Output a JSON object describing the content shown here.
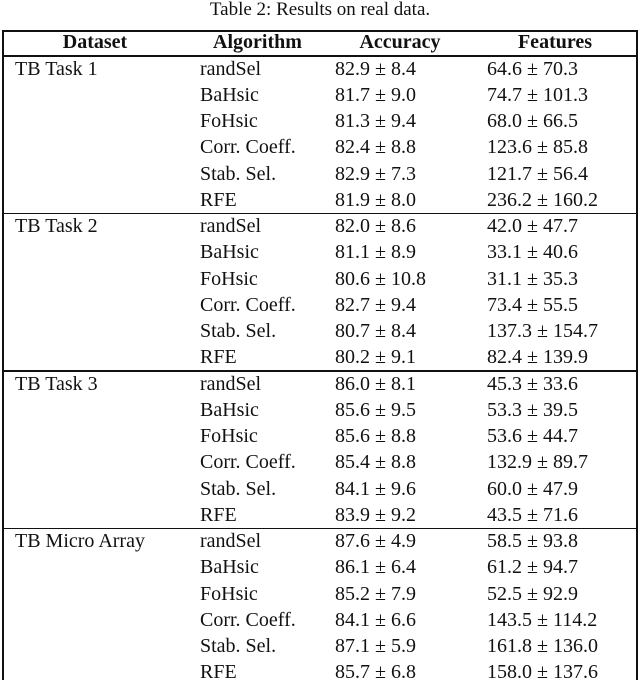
{
  "caption": "Table 2: Results on real data.",
  "table": {
    "headers": [
      "Dataset",
      "Algorithm",
      "Accuracy",
      "Features"
    ],
    "groups": [
      {
        "dataset": "TB Task 1",
        "rows": [
          [
            "randSel",
            "82.9 ± 8.4",
            "64.6 ± 70.3"
          ],
          [
            "BaHsic",
            "81.7 ± 9.0",
            "74.7 ± 101.3"
          ],
          [
            "FoHsic",
            "81.3 ± 9.4",
            "68.0 ± 66.5"
          ],
          [
            "Corr. Coeff.",
            "82.4 ± 8.8",
            "123.6 ± 85.8"
          ],
          [
            "Stab. Sel.",
            "82.9 ± 7.3",
            "121.7 ± 56.4"
          ],
          [
            "RFE",
            "81.9 ± 8.0",
            "236.2 ± 160.2"
          ]
        ]
      },
      {
        "dataset": "TB Task 2",
        "rows": [
          [
            "randSel",
            "82.0 ± 8.6",
            "42.0 ± 47.7"
          ],
          [
            "BaHsic",
            "81.1 ± 8.9",
            "33.1 ± 40.6"
          ],
          [
            "FoHsic",
            "80.6 ± 10.8",
            "31.1 ± 35.3"
          ],
          [
            "Corr. Coeff.",
            "82.7 ± 9.4",
            "73.4 ± 55.5"
          ],
          [
            "Stab. Sel.",
            "80.7 ± 8.4",
            "137.3 ± 154.7"
          ],
          [
            "RFE",
            "80.2 ± 9.1",
            "82.4 ± 139.9"
          ]
        ]
      },
      {
        "dataset": "TB Task 3",
        "rows": [
          [
            "randSel",
            "86.0 ± 8.1",
            "45.3 ± 33.6"
          ],
          [
            "BaHsic",
            "85.6 ± 9.5",
            "53.3 ± 39.5"
          ],
          [
            "FoHsic",
            "85.6 ± 8.8",
            "53.6 ± 44.7"
          ],
          [
            "Corr. Coeff.",
            "85.4 ± 8.8",
            "132.9 ± 89.7"
          ],
          [
            "Stab. Sel.",
            "84.1 ± 9.6",
            "60.0 ± 47.9"
          ],
          [
            "RFE",
            "83.9 ± 9.2",
            "43.5 ± 71.6"
          ]
        ]
      },
      {
        "dataset": "TB Micro Array",
        "rows": [
          [
            "randSel",
            "87.6 ± 4.9",
            "58.5 ± 93.8"
          ],
          [
            "BaHsic",
            "86.1 ± 6.4",
            "61.2 ± 94.7"
          ],
          [
            "FoHsic",
            "85.2 ± 7.9",
            "52.5 ± 92.9"
          ],
          [
            "Corr. Coeff.",
            "84.1 ± 6.6",
            "143.5 ± 114.2"
          ],
          [
            "Stab. Sel.",
            "87.1 ± 5.9",
            "161.8 ± 136.0"
          ],
          [
            "RFE",
            "85.7 ± 6.8",
            "158.0 ± 137.6"
          ]
        ]
      }
    ]
  }
}
